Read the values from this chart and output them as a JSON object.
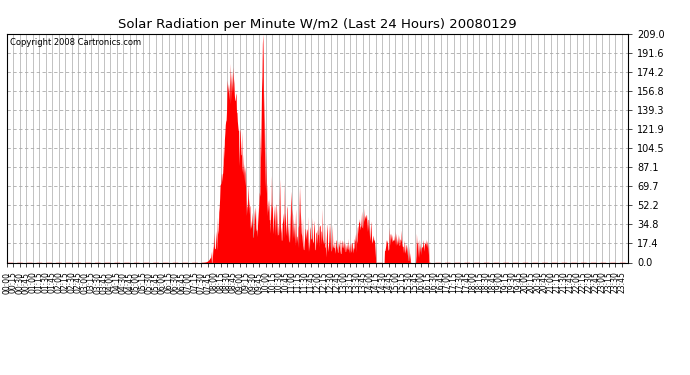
{
  "title": "Solar Radiation per Minute W/m2 (Last 24 Hours) 20080129",
  "copyright_text": "Copyright 2008 Cartronics.com",
  "background_color": "#ffffff",
  "plot_bg_color": "#ffffff",
  "bar_color": "#ff0000",
  "dashed_line_color": "#ff0000",
  "grid_color": "#aaaaaa",
  "ylim": [
    0.0,
    209.0
  ],
  "yticks": [
    0.0,
    17.4,
    34.8,
    52.2,
    69.7,
    87.1,
    104.5,
    121.9,
    139.3,
    156.8,
    174.2,
    191.6,
    209.0
  ],
  "total_minutes": 1440,
  "x_tick_interval": 15
}
